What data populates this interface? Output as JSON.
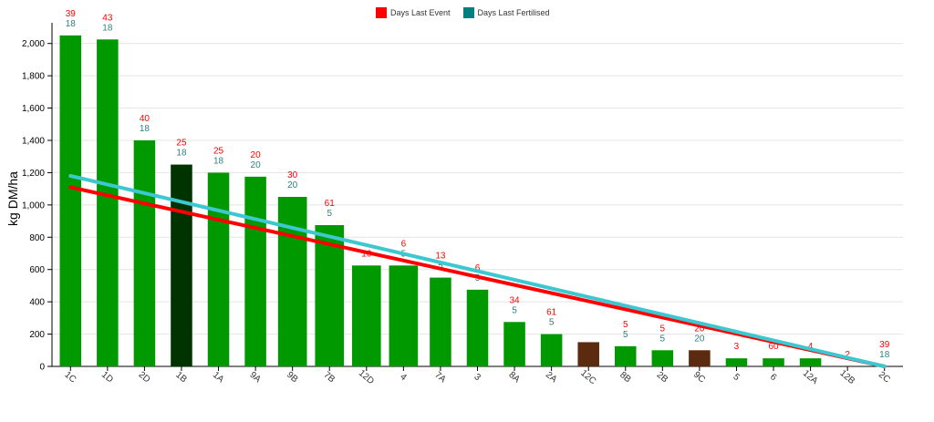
{
  "chart_data": {
    "type": "bar",
    "ylabel": "kg DM/ha",
    "ylim": [
      0,
      2100
    ],
    "yticks": [
      0,
      200,
      400,
      600,
      800,
      1000,
      1200,
      1400,
      1600,
      1800,
      2000
    ],
    "ytick_labels": [
      "0",
      "200",
      "400",
      "600",
      "800",
      "1,000",
      "1,200",
      "1,400",
      "1,600",
      "1,800",
      "2,000"
    ],
    "grid": true,
    "legend_position": "top-center",
    "legend": [
      {
        "name": "Days Last Event",
        "color": "#ff0000"
      },
      {
        "name": "Days Last Fertilised",
        "color": "#007f7f"
      }
    ],
    "colors": {
      "bar_default": "#009900",
      "bar_dark_green": "#003300",
      "bar_brown": "#5c2a0e",
      "event_label": "#ff0000",
      "fert_label": "#2f7f7f",
      "trend_event": "#ff0000",
      "trend_fert": "#3cc8d0"
    },
    "categories": [
      "1C",
      "1D",
      "2D",
      "1B",
      "1A",
      "9A",
      "9B",
      "7B",
      "12D",
      "4",
      "7A",
      "3",
      "8A",
      "2A",
      "12C",
      "8B",
      "2B",
      "9C",
      "5",
      "6",
      "12A",
      "12B",
      "2C"
    ],
    "values": [
      2050,
      2025,
      1400,
      1250,
      1200,
      1175,
      1050,
      875,
      625,
      625,
      550,
      475,
      275,
      200,
      150,
      125,
      100,
      100,
      50,
      50,
      50,
      0,
      0
    ],
    "bar_colors": [
      "bar_default",
      "bar_default",
      "bar_default",
      "bar_dark_green",
      "bar_default",
      "bar_default",
      "bar_default",
      "bar_default",
      "bar_default",
      "bar_default",
      "bar_default",
      "bar_default",
      "bar_default",
      "bar_default",
      "bar_brown",
      "bar_default",
      "bar_default",
      "bar_brown",
      "bar_default",
      "bar_default",
      "bar_default",
      "bar_default",
      "bar_default"
    ],
    "days_last_event": [
      "39",
      "43",
      "40",
      "25",
      "25",
      "20",
      "30",
      "61",
      "16",
      "6",
      "13",
      "6",
      "34",
      "61",
      "",
      "5",
      "5",
      "20",
      "3",
      "60",
      "4",
      "2",
      "39"
    ],
    "days_last_fertilised": [
      "18",
      "18",
      "18",
      "18",
      "18",
      "20",
      "20",
      "5",
      "",
      "5",
      "5",
      "5",
      "5",
      "5",
      "",
      "5",
      "5",
      "20",
      "",
      "",
      "",
      "",
      "18"
    ],
    "trend_lines": [
      {
        "name": "Days Last Event",
        "start": 1110,
        "end": 0
      },
      {
        "name": "Days Last Fertilised",
        "start": 1180,
        "end": 0
      }
    ]
  }
}
